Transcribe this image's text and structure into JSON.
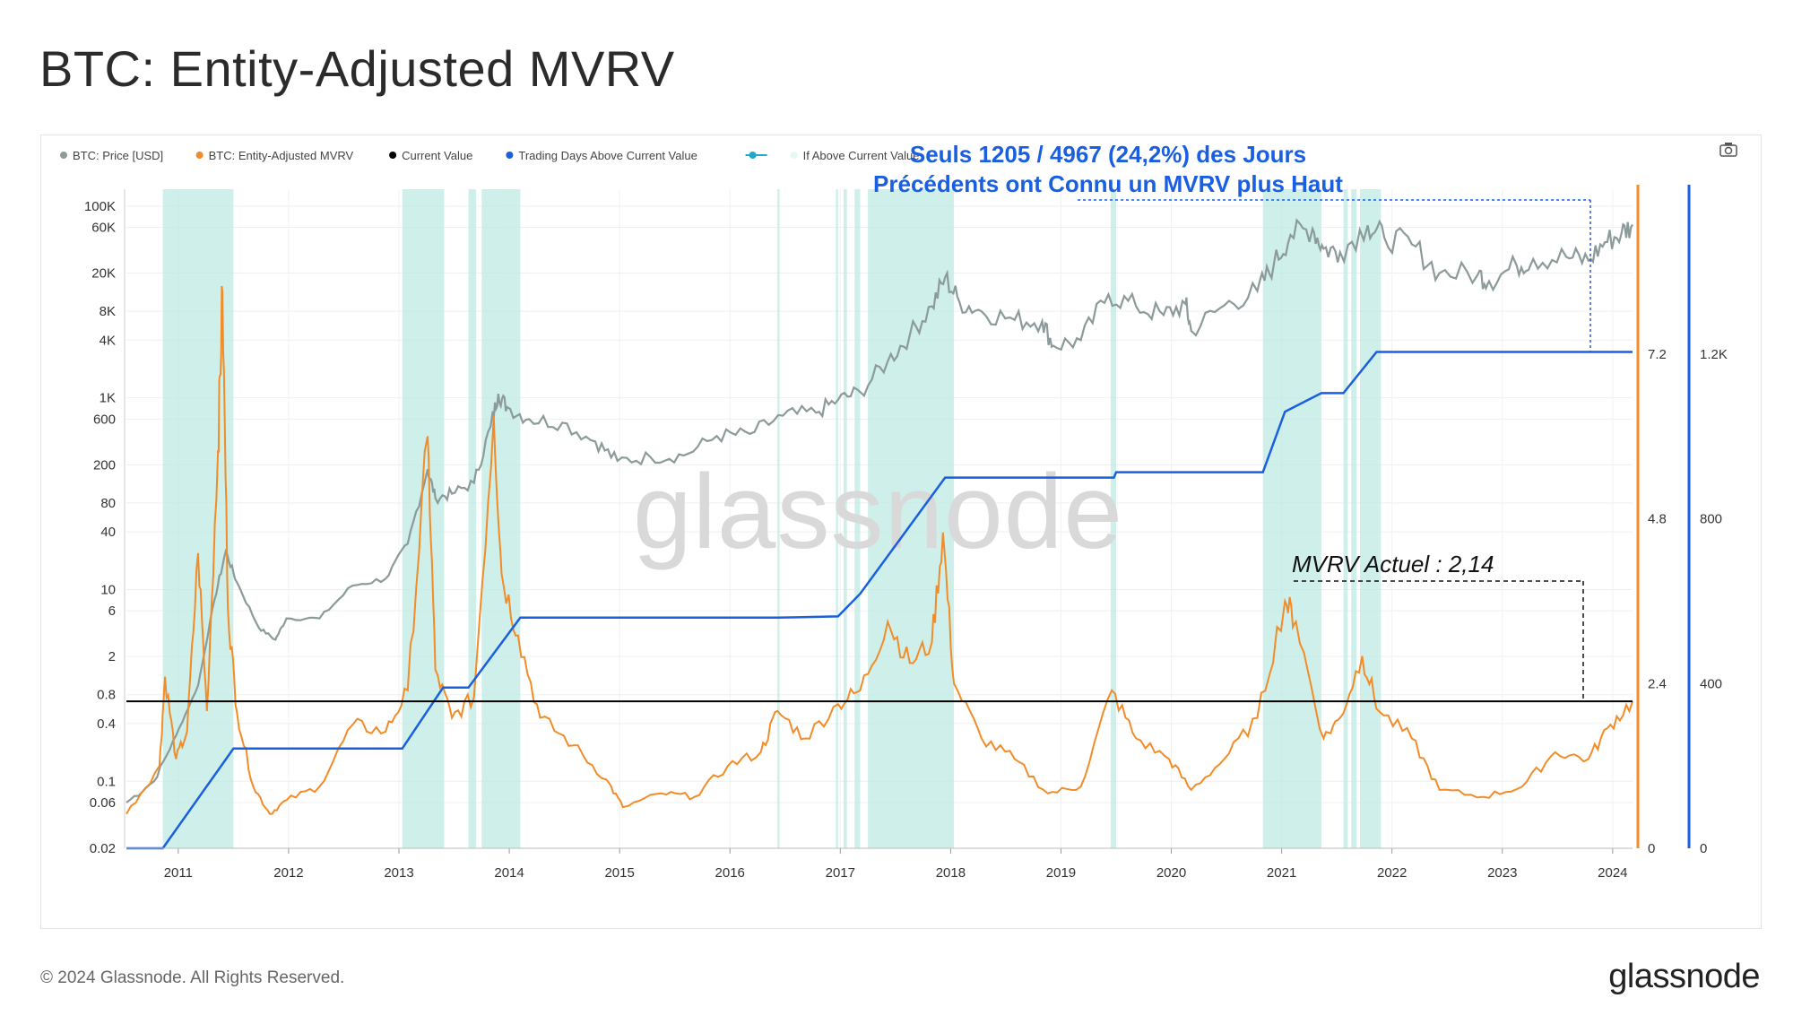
{
  "page": {
    "title": "BTC: Entity-Adjusted MVRV",
    "copyright": "© 2024 Glassnode. All Rights Reserved.",
    "logo": "glassnode",
    "watermark": "glassnode",
    "camera_icon": "camera-icon"
  },
  "chart_data": {
    "type": "line",
    "title": "BTC: Entity-Adjusted MVRV",
    "legend": [
      {
        "label": "BTC: Price [USD]",
        "color": "#8c9a9a",
        "marker": "dot"
      },
      {
        "label": "BTC: Entity-Adjusted MVRV",
        "color": "#f28c28",
        "marker": "dot"
      },
      {
        "label": "Current Value",
        "color": "#000000",
        "marker": "dot"
      },
      {
        "label": "Trading Days Above Current Value",
        "color": "#1a5fe0",
        "marker": "dot"
      },
      {
        "label": "",
        "color": "#20a9c8",
        "marker": "line-dot"
      },
      {
        "label": "If Above Current Value",
        "color": "#e6f7f5",
        "marker": "dot"
      }
    ],
    "x_ticks": [
      "2011",
      "2012",
      "2013",
      "2014",
      "2015",
      "2016",
      "2017",
      "2018",
      "2019",
      "2020",
      "2021",
      "2022",
      "2023",
      "2024"
    ],
    "x_range": [
      2010.55,
      2024.2
    ],
    "price_axis": {
      "scale": "log",
      "ticks": [
        "100K",
        "60K",
        "20K",
        "8K",
        "4K",
        "1K",
        "600",
        "200",
        "80",
        "40",
        "10",
        "6",
        "2",
        "0.8",
        "0.4",
        "0.1",
        "0.06",
        "0.02"
      ],
      "ylim": [
        0.02,
        150000
      ]
    },
    "mvrv_axis": {
      "ticks": [
        "7.2",
        "4.8",
        "2.4",
        "0"
      ],
      "ylim": [
        0,
        9.6
      ]
    },
    "days_axis": {
      "ticks": [
        "1.2K",
        "800",
        "400",
        "0"
      ],
      "ylim": [
        0,
        1600
      ]
    },
    "current_mvrv": 2.14,
    "price_series": [
      [
        2010.55,
        0.06
      ],
      [
        2010.8,
        0.1
      ],
      [
        2011.0,
        0.3
      ],
      [
        2011.2,
        1.0
      ],
      [
        2011.35,
        8
      ],
      [
        2011.45,
        25
      ],
      [
        2011.55,
        12
      ],
      [
        2011.75,
        4
      ],
      [
        2011.9,
        3
      ],
      [
        2012.0,
        5
      ],
      [
        2012.3,
        5
      ],
      [
        2012.6,
        11
      ],
      [
        2012.9,
        13
      ],
      [
        2013.1,
        30
      ],
      [
        2013.28,
        180
      ],
      [
        2013.35,
        90
      ],
      [
        2013.5,
        100
      ],
      [
        2013.7,
        130
      ],
      [
        2013.85,
        500
      ],
      [
        2013.92,
        1100
      ],
      [
        2014.0,
        800
      ],
      [
        2014.2,
        600
      ],
      [
        2014.5,
        550
      ],
      [
        2014.8,
        350
      ],
      [
        2015.0,
        220
      ],
      [
        2015.3,
        240
      ],
      [
        2015.6,
        250
      ],
      [
        2015.9,
        400
      ],
      [
        2016.2,
        420
      ],
      [
        2016.5,
        650
      ],
      [
        2016.8,
        700
      ],
      [
        2017.0,
        950
      ],
      [
        2017.2,
        1150
      ],
      [
        2017.45,
        2400
      ],
      [
        2017.65,
        4500
      ],
      [
        2017.85,
        9000
      ],
      [
        2017.97,
        18000
      ],
      [
        2018.1,
        10000
      ],
      [
        2018.3,
        8000
      ],
      [
        2018.6,
        6500
      ],
      [
        2018.85,
        6300
      ],
      [
        2018.95,
        3500
      ],
      [
        2019.2,
        4000
      ],
      [
        2019.45,
        12000
      ],
      [
        2019.7,
        9000
      ],
      [
        2019.95,
        7300
      ],
      [
        2020.15,
        9500
      ],
      [
        2020.2,
        5000
      ],
      [
        2020.5,
        9200
      ],
      [
        2020.8,
        13000
      ],
      [
        2020.95,
        25000
      ],
      [
        2021.1,
        50000
      ],
      [
        2021.3,
        58000
      ],
      [
        2021.4,
        36000
      ],
      [
        2021.55,
        33000
      ],
      [
        2021.8,
        63000
      ],
      [
        2021.95,
        47000
      ],
      [
        2022.2,
        40000
      ],
      [
        2022.45,
        20000
      ],
      [
        2022.8,
        19500
      ],
      [
        2022.9,
        16500
      ],
      [
        2023.15,
        24000
      ],
      [
        2023.3,
        28000
      ],
      [
        2023.6,
        29500
      ],
      [
        2023.8,
        27000
      ],
      [
        2023.95,
        42000
      ],
      [
        2024.1,
        52000
      ],
      [
        2024.2,
        64000
      ]
    ],
    "mvrv_series": [
      [
        2010.55,
        0.5
      ],
      [
        2010.85,
        1.2
      ],
      [
        2010.9,
        2.5
      ],
      [
        2011.0,
        1.3
      ],
      [
        2011.1,
        1.7
      ],
      [
        2011.2,
        4.3
      ],
      [
        2011.28,
        2.0
      ],
      [
        2011.38,
        5.8
      ],
      [
        2011.42,
        8.1
      ],
      [
        2011.47,
        3.5
      ],
      [
        2011.55,
        2.0
      ],
      [
        2011.7,
        0.9
      ],
      [
        2011.85,
        0.5
      ],
      [
        2012.0,
        0.7
      ],
      [
        2012.3,
        0.9
      ],
      [
        2012.6,
        1.8
      ],
      [
        2012.9,
        1.7
      ],
      [
        2013.1,
        2.3
      ],
      [
        2013.28,
        6.0
      ],
      [
        2013.35,
        2.6
      ],
      [
        2013.5,
        1.9
      ],
      [
        2013.7,
        2.2
      ],
      [
        2013.88,
        6.3
      ],
      [
        2013.95,
        4.0
      ],
      [
        2014.1,
        3.1
      ],
      [
        2014.3,
        1.9
      ],
      [
        2014.6,
        1.5
      ],
      [
        2014.9,
        1.0
      ],
      [
        2015.05,
        0.6
      ],
      [
        2015.4,
        0.8
      ],
      [
        2015.7,
        0.75
      ],
      [
        2016.0,
        1.2
      ],
      [
        2016.3,
        1.4
      ],
      [
        2016.45,
        2.0
      ],
      [
        2016.7,
        1.6
      ],
      [
        2017.0,
        2.1
      ],
      [
        2017.2,
        2.3
      ],
      [
        2017.45,
        3.3
      ],
      [
        2017.65,
        2.7
      ],
      [
        2017.85,
        3.0
      ],
      [
        2017.95,
        4.6
      ],
      [
        2018.05,
        2.4
      ],
      [
        2018.3,
        1.6
      ],
      [
        2018.6,
        1.3
      ],
      [
        2018.9,
        0.8
      ],
      [
        2019.2,
        0.9
      ],
      [
        2019.48,
        2.3
      ],
      [
        2019.7,
        1.6
      ],
      [
        2020.0,
        1.3
      ],
      [
        2020.2,
        0.85
      ],
      [
        2020.5,
        1.3
      ],
      [
        2020.8,
        1.9
      ],
      [
        2021.05,
        3.6
      ],
      [
        2021.15,
        3.3
      ],
      [
        2021.4,
        1.6
      ],
      [
        2021.55,
        1.9
      ],
      [
        2021.75,
        2.8
      ],
      [
        2021.9,
        2.0
      ],
      [
        2022.2,
        1.6
      ],
      [
        2022.45,
        0.85
      ],
      [
        2022.85,
        0.75
      ],
      [
        2023.2,
        0.9
      ],
      [
        2023.5,
        1.4
      ],
      [
        2023.8,
        1.3
      ],
      [
        2024.0,
        1.8
      ],
      [
        2024.2,
        2.14
      ]
    ],
    "days_series": [
      [
        2010.55,
        0
      ],
      [
        2010.88,
        0
      ],
      [
        2011.52,
        242
      ],
      [
        2012.6,
        242
      ],
      [
        2013.05,
        242
      ],
      [
        2013.42,
        390
      ],
      [
        2013.65,
        390
      ],
      [
        2014.12,
        560
      ],
      [
        2016.45,
        560
      ],
      [
        2017.0,
        563
      ],
      [
        2017.2,
        618
      ],
      [
        2017.97,
        900
      ],
      [
        2019.5,
        900
      ],
      [
        2019.52,
        913
      ],
      [
        2020.85,
        913
      ],
      [
        2021.05,
        1060
      ],
      [
        2021.38,
        1105
      ],
      [
        2021.58,
        1105
      ],
      [
        2021.88,
        1205
      ],
      [
        2024.2,
        1205
      ]
    ],
    "shaded_regions": [
      [
        2010.88,
        2011.52
      ],
      [
        2013.05,
        2013.43
      ],
      [
        2013.65,
        2013.72
      ],
      [
        2013.77,
        2014.12
      ],
      [
        2016.45,
        2016.47
      ],
      [
        2016.98,
        2017.0
      ],
      [
        2017.05,
        2017.08
      ],
      [
        2017.15,
        2017.2
      ],
      [
        2017.27,
        2018.05
      ],
      [
        2019.47,
        2019.52
      ],
      [
        2020.85,
        2021.38
      ],
      [
        2021.58,
        2021.62
      ],
      [
        2021.65,
        2021.7
      ],
      [
        2021.73,
        2021.92
      ]
    ],
    "annotations": {
      "top_line1": "Seuls 1205 / 4967 (24,2%) des Jours",
      "top_line2": "Précédents ont Connu un MVRV plus Haut",
      "current_label": "MVRV Actuel : 2,14"
    }
  }
}
